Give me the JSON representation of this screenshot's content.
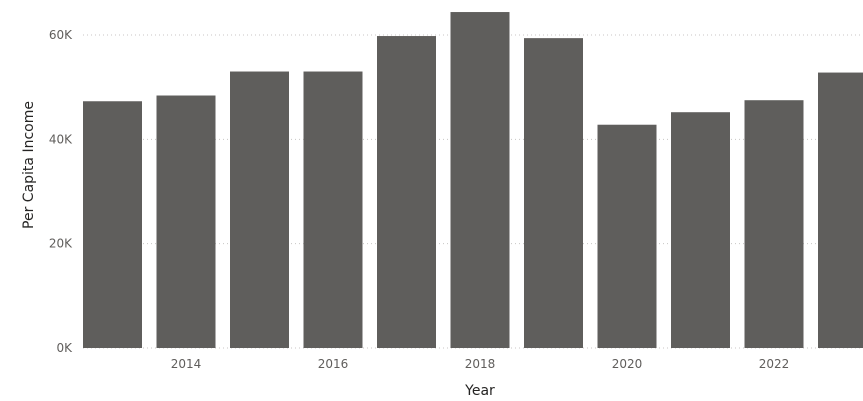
{
  "colors": {
    "bar": "#5f5e5c",
    "grid": "#c8c6c4",
    "tick": "#605e5c",
    "title": "#252423"
  },
  "chart_data": {
    "type": "bar",
    "xlabel": "Year",
    "ylabel": "Per Capita Income",
    "ylim": [
      0,
      60000
    ],
    "yticks": [
      0,
      20000,
      40000,
      60000
    ],
    "ytick_labels": [
      "0K",
      "20K",
      "40K",
      "60K"
    ],
    "x_tick_labels": [
      "2014",
      "2016",
      "2018",
      "2020",
      "2022"
    ],
    "x": [
      2013,
      2014,
      2015,
      2016,
      2017,
      2018,
      2019,
      2020,
      2021,
      2022,
      2023
    ],
    "values": [
      47300,
      48400,
      53000,
      53000,
      59800,
      64400,
      59400,
      42800,
      45200,
      47500,
      52800
    ],
    "grid": true,
    "grid_style": "dotted horizontal"
  }
}
